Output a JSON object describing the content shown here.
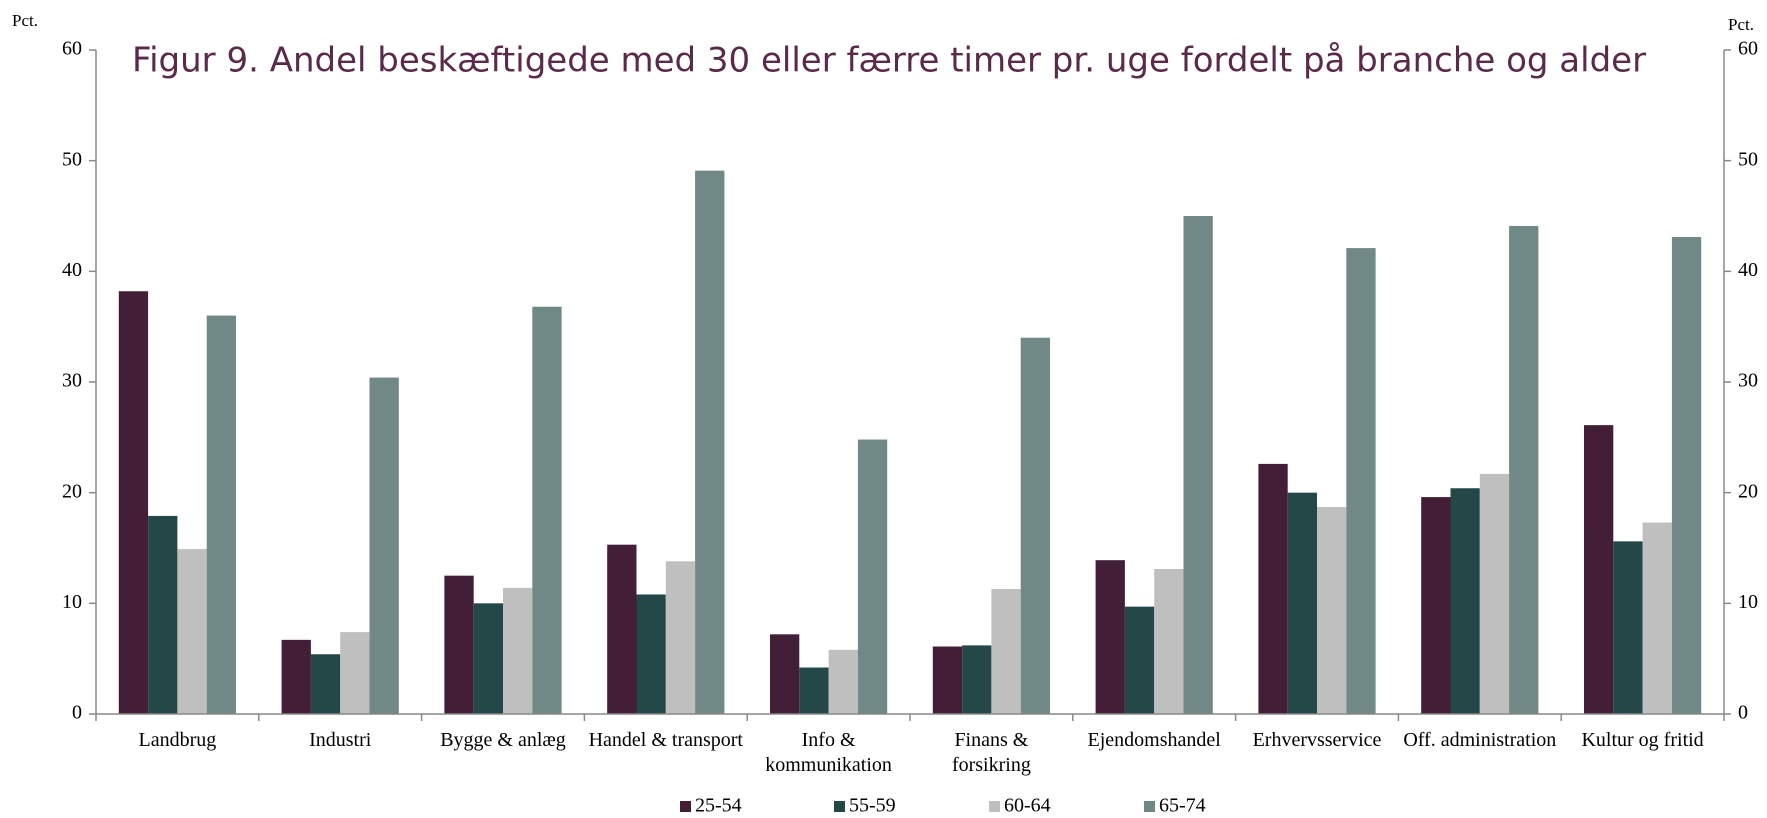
{
  "chart_data": {
    "type": "bar",
    "title": "Figur 9. Andel beskæftigede med 30 eller færre timer pr. uge fordelt på branche og alder",
    "y_label": "Pct.",
    "categories": [
      "Landbrug",
      "Industri",
      "Bygge & anlæg",
      "Handel & transport",
      "Info & kommunikation",
      "Finans & forsikring",
      "Ejendomshandel",
      "Erhvervsservice",
      "Off. administration",
      "Kultur og fritid"
    ],
    "series": [
      {
        "name": "25-54",
        "color": "#421f36",
        "values": [
          38.2,
          6.7,
          12.5,
          15.3,
          7.2,
          6.1,
          13.9,
          22.6,
          19.6,
          26.1
        ]
      },
      {
        "name": "55-59",
        "color": "#234847",
        "values": [
          17.9,
          5.4,
          10.0,
          10.8,
          4.2,
          6.2,
          9.7,
          20.0,
          20.4,
          15.6
        ]
      },
      {
        "name": "60-64",
        "color": "#bfbfbf",
        "values": [
          14.9,
          7.4,
          11.4,
          13.8,
          5.8,
          11.3,
          13.1,
          18.7,
          21.7,
          17.3
        ]
      },
      {
        "name": "65-74",
        "color": "#708886",
        "values": [
          36.0,
          30.4,
          36.8,
          49.1,
          24.8,
          34.0,
          45.0,
          42.1,
          44.1,
          43.1
        ]
      }
    ],
    "ylim": [
      0,
      60
    ],
    "yticks": [
      0,
      10,
      20,
      30,
      40,
      50,
      60
    ],
    "grid": false,
    "legend": "bottom"
  }
}
